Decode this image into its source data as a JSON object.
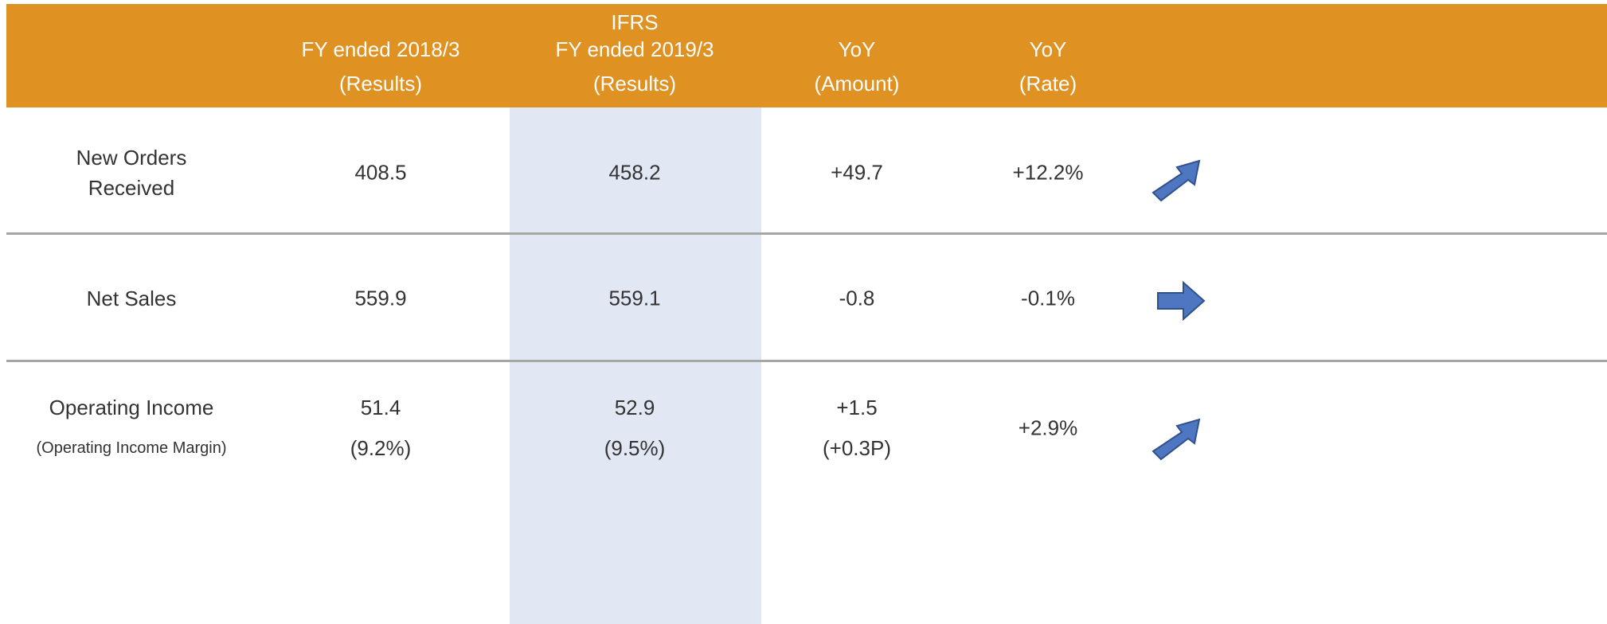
{
  "header": {
    "group": "IFRS",
    "columns": [
      [
        "FY ended 2018/3",
        "(Results)"
      ],
      [
        "FY ended 2019/3",
        "(Results)"
      ],
      [
        "YoY",
        "(Amount)"
      ],
      [
        "YoY",
        "(Rate)"
      ]
    ]
  },
  "rows": [
    {
      "label": [
        "New Orders",
        "Received"
      ],
      "values": [
        [
          "408.5"
        ],
        [
          "458.2"
        ],
        [
          "+49.7"
        ],
        [
          "+12.2%"
        ]
      ]
    },
    {
      "label": [
        "Net Sales"
      ],
      "values": [
        [
          "559.9"
        ],
        [
          "559.1"
        ],
        [
          "-0.8"
        ],
        [
          "-0.1%"
        ]
      ]
    },
    {
      "label": [
        "Operating Income",
        "(Operating Income Margin)"
      ],
      "values": [
        [
          "51.4",
          "(9.2%)"
        ],
        [
          "52.9",
          "(9.5%)"
        ],
        [
          "+1.5",
          "(+0.3P)"
        ],
        [
          "+2.9%"
        ]
      ]
    }
  ]
}
